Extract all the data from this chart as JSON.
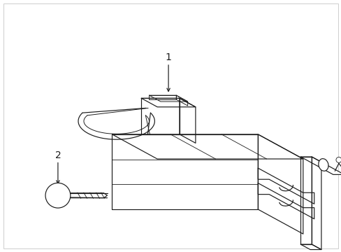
{
  "bg_color": "#ffffff",
  "line_color": "#1a1a1a",
  "line_width": 0.85,
  "label1_text": "1",
  "label2_text": "2",
  "font_size": 10
}
